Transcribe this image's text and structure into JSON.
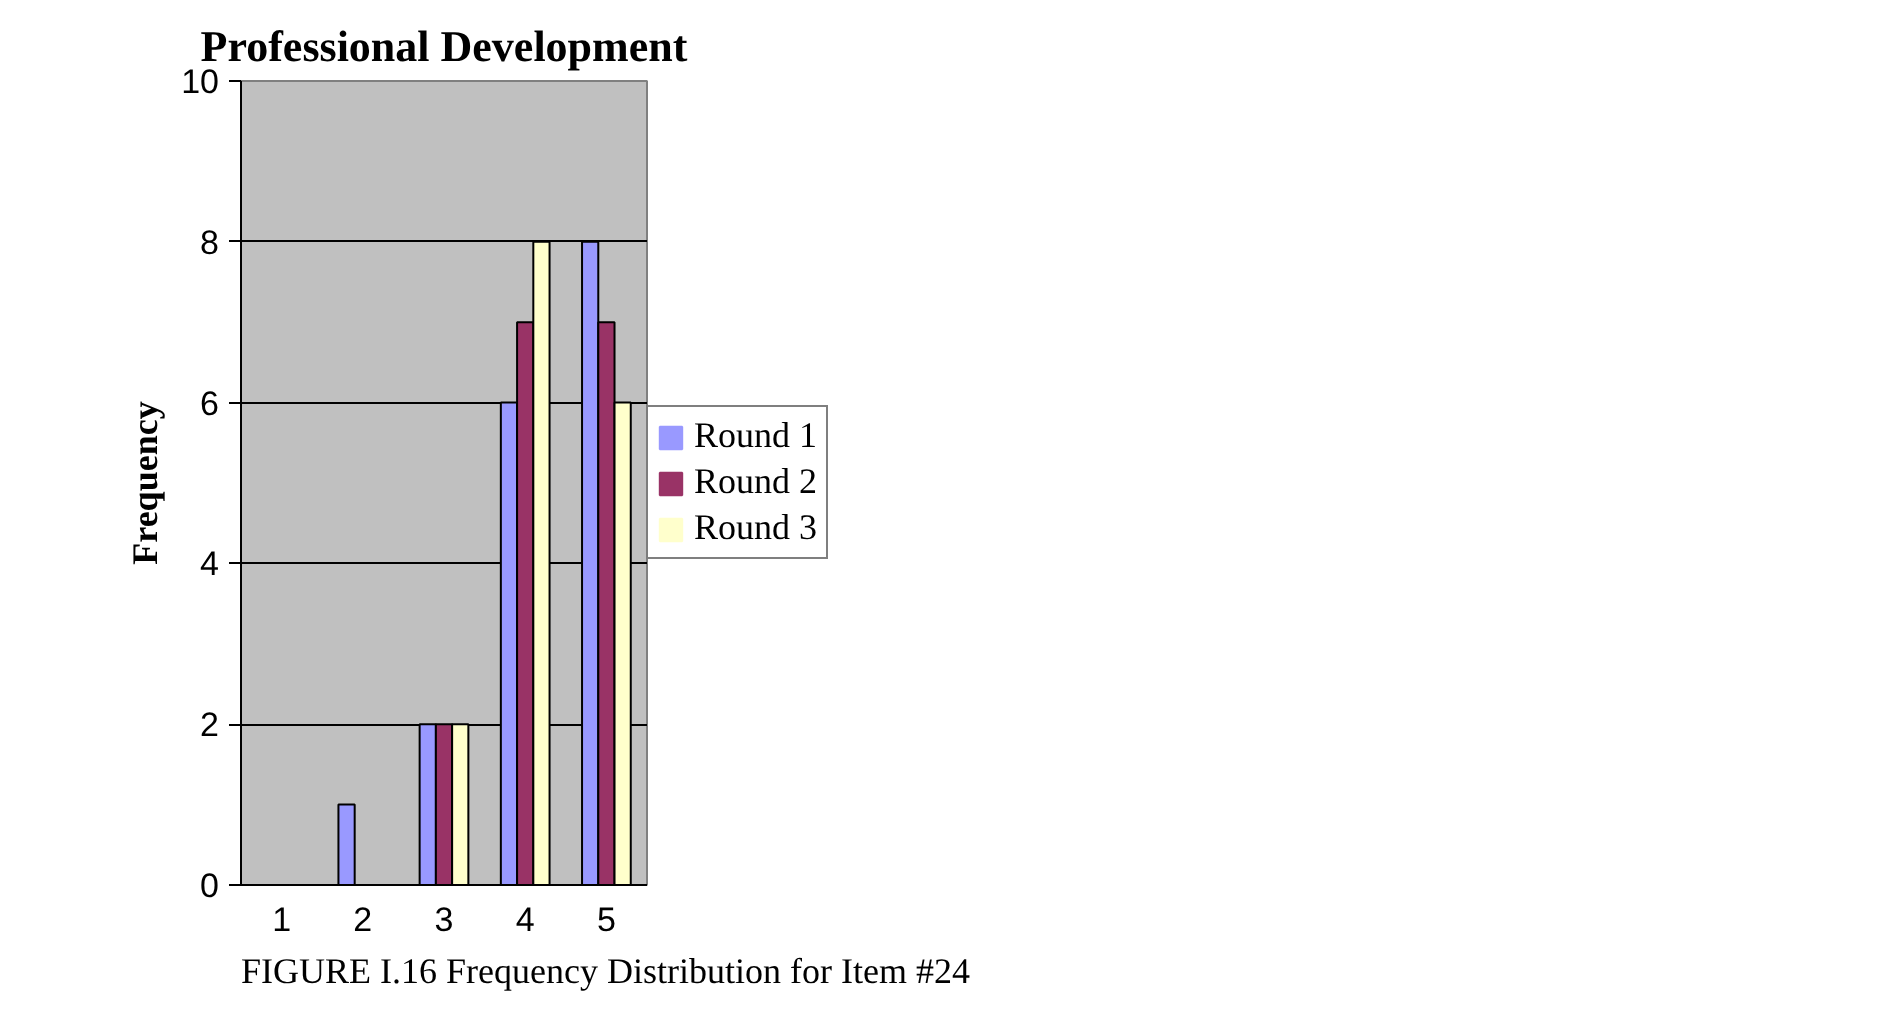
{
  "chart_data": {
    "type": "bar",
    "title": "Professional Development",
    "ylabel": "Frequency",
    "categories": [
      "1",
      "2",
      "3",
      "4",
      "5"
    ],
    "series": [
      {
        "name": "Round 1",
        "color": "#9999ff",
        "values": [
          0,
          1,
          2,
          6,
          8
        ]
      },
      {
        "name": "Round 2",
        "color": "#993366",
        "values": [
          0,
          0,
          2,
          7,
          7
        ]
      },
      {
        "name": "Round 3",
        "color": "#ffffcc",
        "values": [
          0,
          0,
          2,
          8,
          6
        ]
      }
    ],
    "ylim": [
      0,
      10
    ],
    "yticks": [
      0,
      2,
      4,
      6,
      8,
      10
    ],
    "grid": "y",
    "legend": "right",
    "annotations": [
      "FIGURE I.16 Frequency Distribution for Item #24"
    ]
  }
}
